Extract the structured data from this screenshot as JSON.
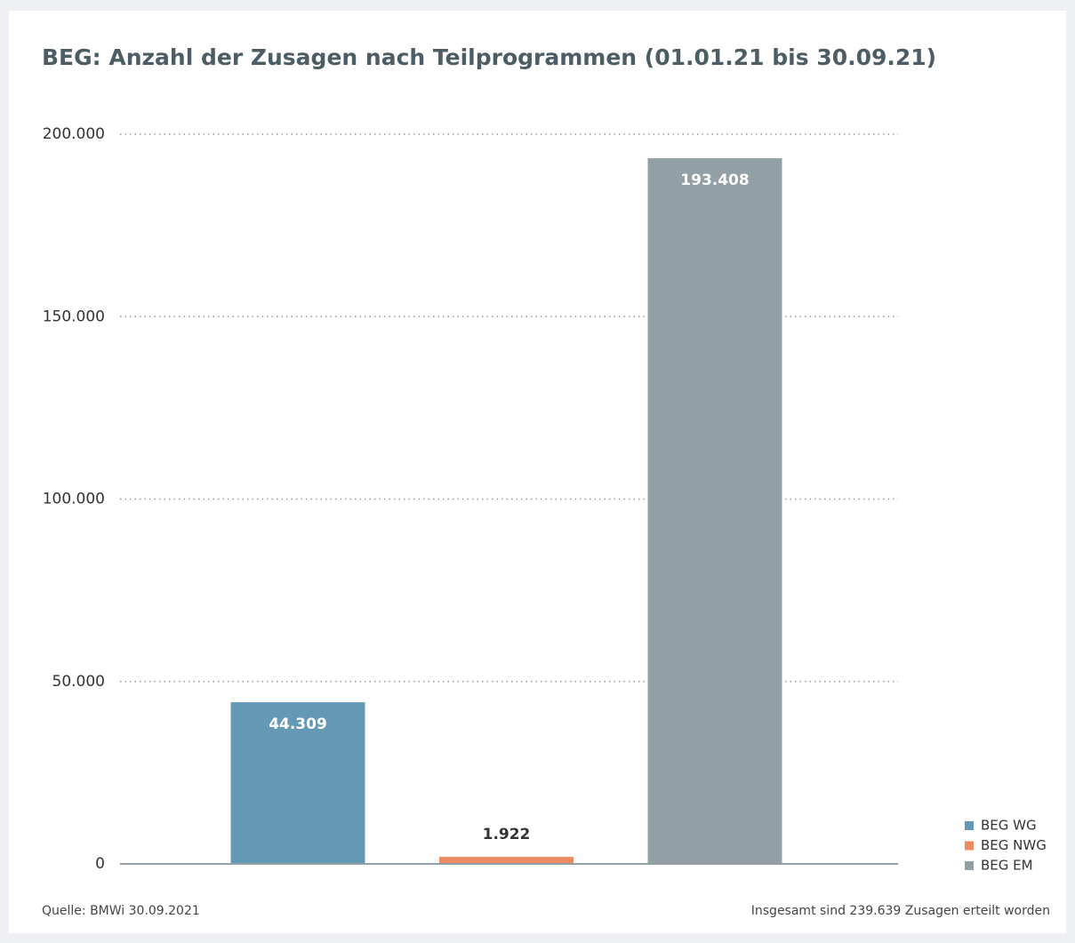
{
  "chart_data": {
    "type": "bar",
    "title": "BEG: Anzahl der Zusagen nach Teilprogrammen (01.01.21 bis 30.09.21)",
    "series": [
      {
        "name": "BEG WG",
        "color": "#6399b5",
        "values": [
          44309
        ],
        "value_labels": [
          "44.309"
        ]
      },
      {
        "name": "BEG NWG",
        "color": "#ec8a62",
        "values": [
          1922
        ],
        "value_labels": [
          "1.922"
        ]
      },
      {
        "name": "BEG EM",
        "color": "#929fa4",
        "values": [
          193408
        ],
        "value_labels": [
          "193.408"
        ]
      }
    ],
    "ylim": [
      0,
      200000
    ],
    "yticks": [
      0,
      {
        "value": 50000,
        "label": "50.000"
      },
      {
        "value": 100000,
        "label": "100.000"
      },
      {
        "value": 150000,
        "label": "150.000"
      },
      {
        "value": 200000,
        "label": "200.000"
      }
    ],
    "grid": true,
    "legend": "lower right",
    "source": "Quelle: BMWi 30.09.2021",
    "note": "Insgesamt sind 239.639 Zusagen erteilt worden"
  }
}
